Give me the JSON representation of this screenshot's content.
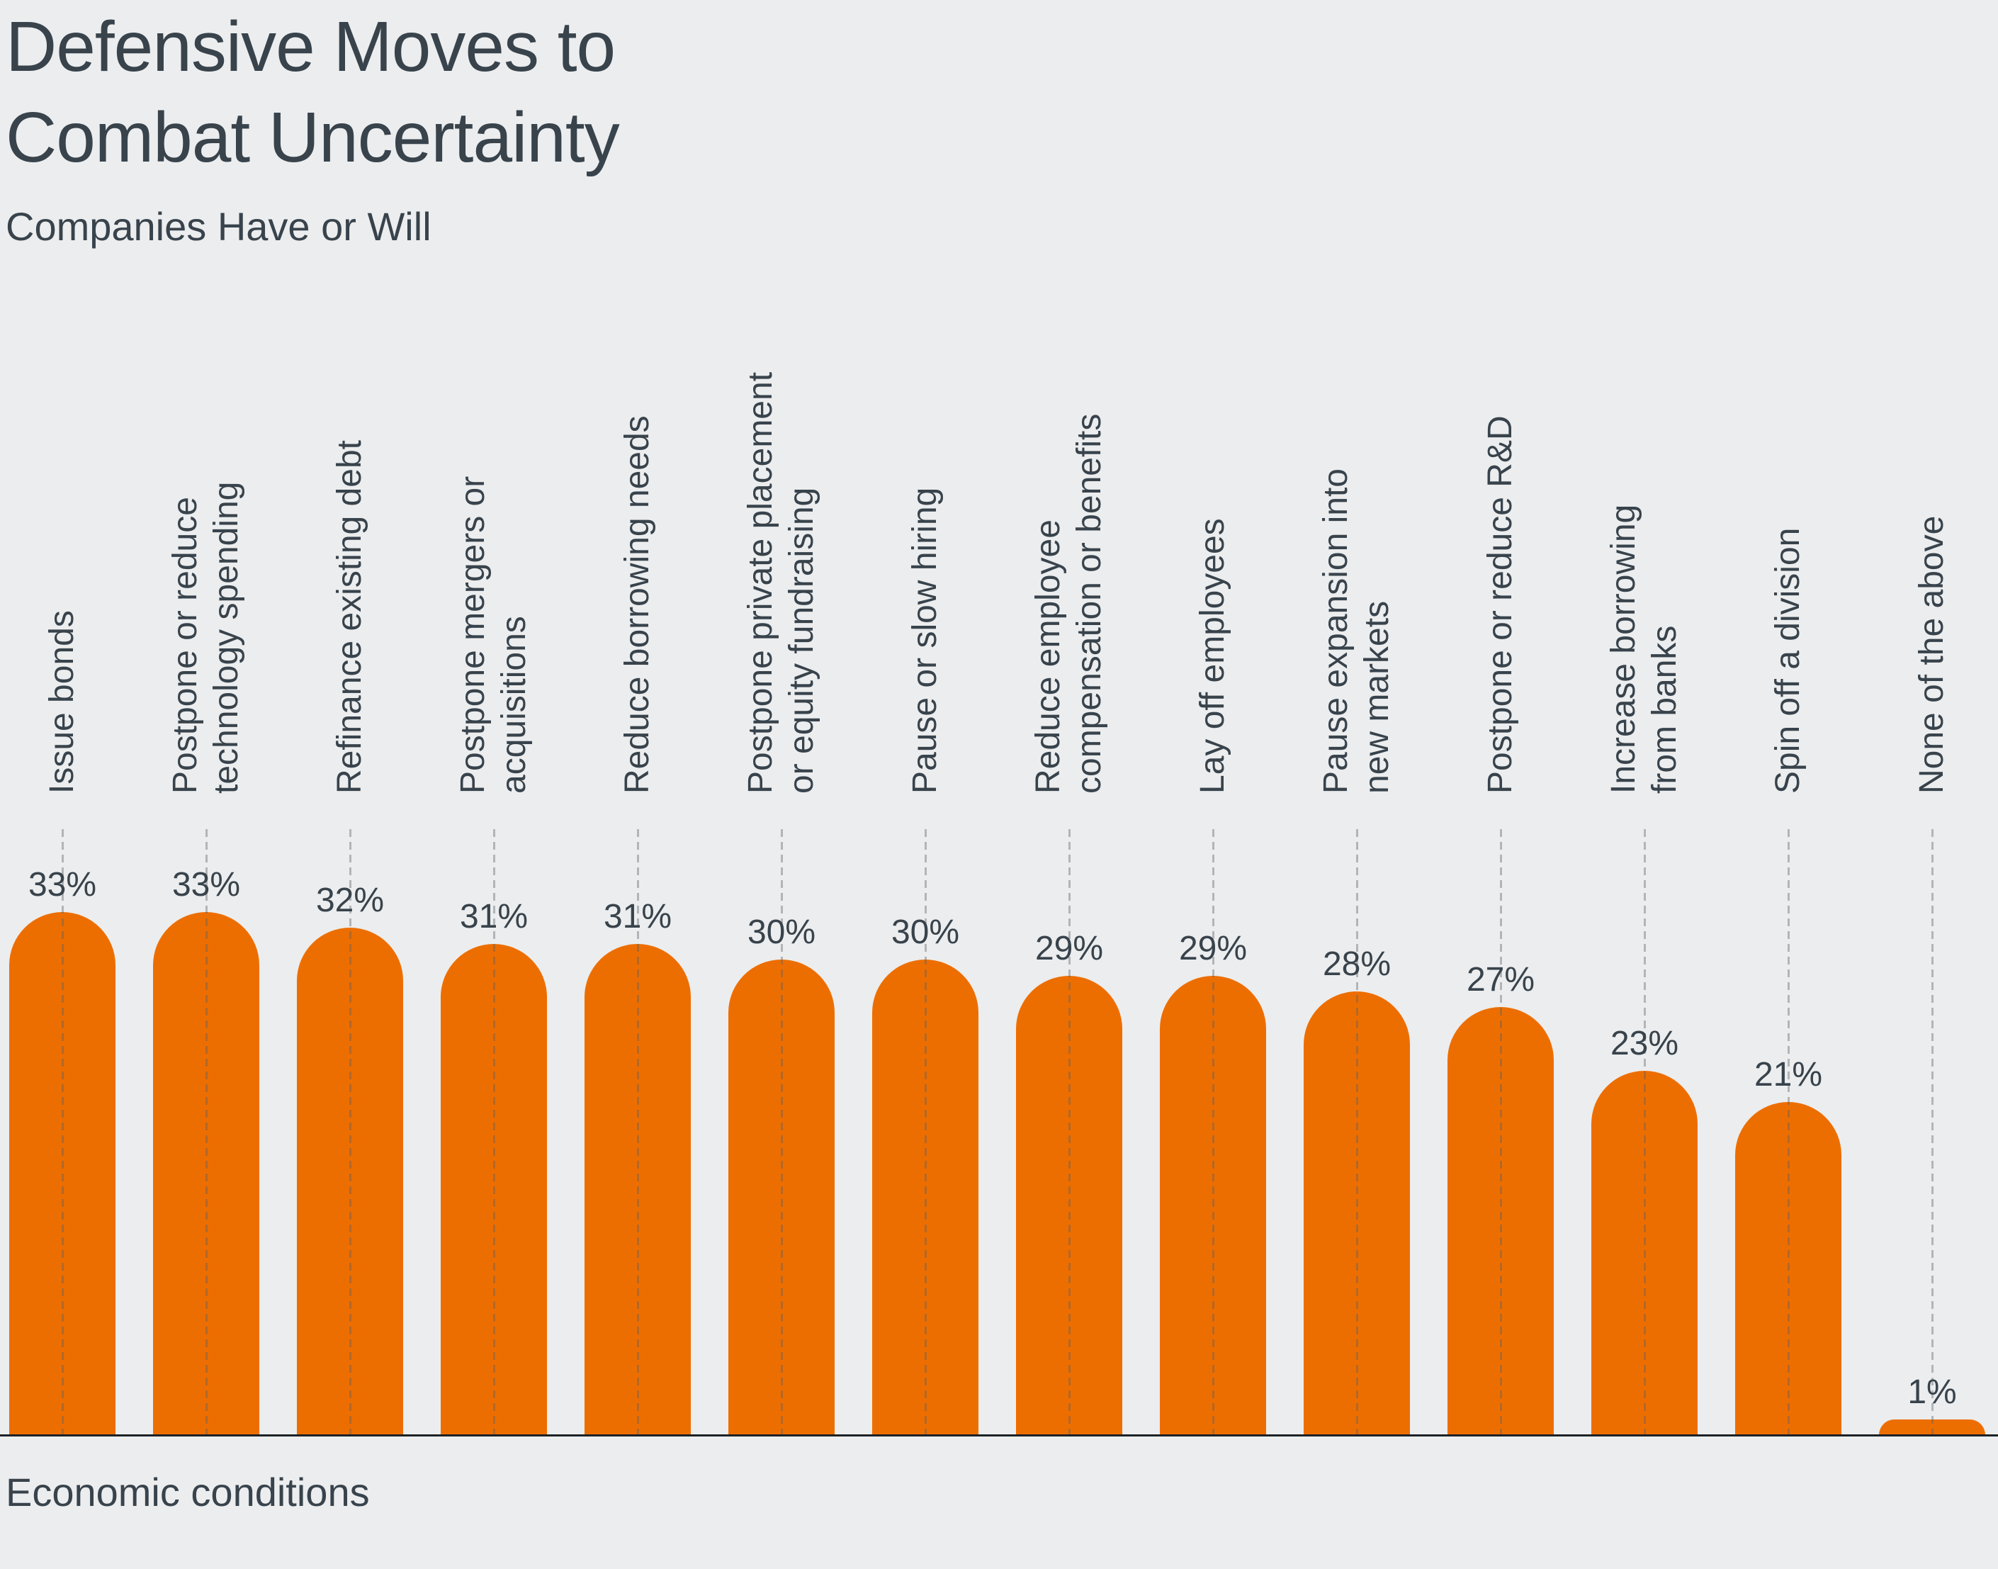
{
  "header": {
    "title": "Defensive Moves to\nCombat Uncertainty",
    "subtitle": "Companies Have or Will"
  },
  "footer": {
    "xlabel": "Economic conditions"
  },
  "chart_data": {
    "type": "bar",
    "title": "Defensive Moves to Combat Uncertainty",
    "subtitle": "Companies Have or Will",
    "xlabel": "Economic conditions",
    "ylabel": "",
    "unit": "%",
    "ylim": [
      0,
      35
    ],
    "grid": false,
    "legend": "none",
    "bar_color": "#ED6E00",
    "background_color": "#ECEDEE",
    "text_color": "#38434C",
    "categories": [
      "Issue bonds",
      "Postpone or reduce technology spending",
      "Refinance existing debt",
      "Postpone mergers or acquisitions",
      "Reduce borrowing needs",
      "Postpone private placement or equity fundraising",
      "Pause or slow hiring",
      "Reduce employee compensation or benefits",
      "Lay off employees",
      "Pause expansion into new markets",
      "Postpone or reduce R&D",
      "Increase borrowing from banks",
      "Spin off a division",
      "None of the above"
    ],
    "category_lines": [
      [
        "Issue bonds"
      ],
      [
        "Postpone or reduce",
        "technology spending"
      ],
      [
        "Refinance existing debt"
      ],
      [
        "Postpone mergers or",
        "acquisitions"
      ],
      [
        "Reduce borrowing needs"
      ],
      [
        "Postpone private placement",
        "or equity fundraising"
      ],
      [
        "Pause or slow hiring"
      ],
      [
        "Reduce employee",
        "compensation or benefits"
      ],
      [
        "Lay off employees"
      ],
      [
        "Pause expansion into",
        "new markets"
      ],
      [
        "Postpone or reduce R&D"
      ],
      [
        "Increase borrowing",
        "from banks"
      ],
      [
        "Spin off a division"
      ],
      [
        "None of the above"
      ]
    ],
    "values": [
      33,
      33,
      32,
      31,
      31,
      30,
      30,
      29,
      29,
      28,
      27,
      23,
      21,
      1
    ],
    "value_labels": [
      "33%",
      "33%",
      "32%",
      "31%",
      "31%",
      "30%",
      "30%",
      "29%",
      "29%",
      "28%",
      "27%",
      "23%",
      "21%",
      "1%"
    ]
  }
}
